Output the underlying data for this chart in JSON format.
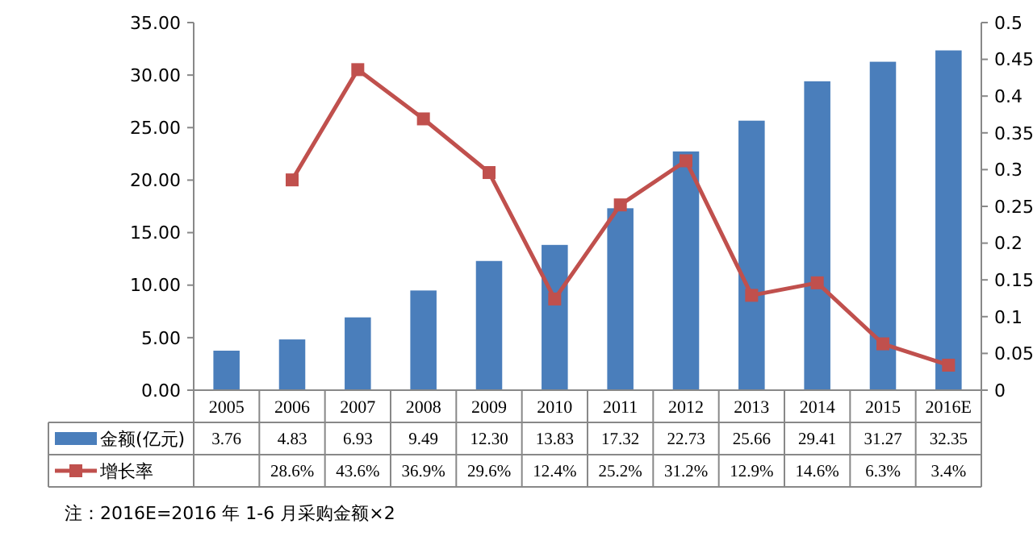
{
  "chart_data": {
    "type": "bar",
    "categories": [
      "2005",
      "2006",
      "2007",
      "2008",
      "2009",
      "2010",
      "2011",
      "2012",
      "2013",
      "2014",
      "2015",
      "2016E"
    ],
    "series": [
      {
        "name": "金额(亿元)",
        "color": "#4a7ebb",
        "values": [
          3.76,
          4.83,
          6.93,
          9.49,
          12.3,
          13.83,
          17.32,
          22.73,
          25.66,
          29.41,
          31.27,
          32.35
        ],
        "value_labels": [
          "3.76",
          "4.83",
          "6.93",
          "9.49",
          "12.30",
          "13.83",
          "17.32",
          "22.73",
          "25.66",
          "29.41",
          "31.27",
          "32.35"
        ]
      },
      {
        "name": "增长率",
        "type": "line",
        "axis": "y2",
        "color": "#c0504d",
        "marker": "square",
        "values": [
          null,
          0.286,
          0.436,
          0.369,
          0.296,
          0.124,
          0.252,
          0.312,
          0.129,
          0.146,
          0.063,
          0.034
        ],
        "value_labels": [
          null,
          "28.6%",
          "43.6%",
          "36.9%",
          "29.6%",
          "12.4%",
          "25.2%",
          "31.2%",
          "12.9%",
          "14.6%",
          "6.3%",
          "3.4%"
        ]
      }
    ],
    "ylim": [
      0,
      35
    ],
    "yticks": [
      {
        "value": 0,
        "label": "0.00"
      },
      {
        "value": 5,
        "label": "5.00"
      },
      {
        "value": 10,
        "label": "10.00"
      },
      {
        "value": 15,
        "label": "15.00"
      },
      {
        "value": 20,
        "label": "20.00"
      },
      {
        "value": 25,
        "label": "25.00"
      },
      {
        "value": 30,
        "label": "30.00"
      },
      {
        "value": 35,
        "label": "35.00"
      }
    ],
    "y2lim": [
      0,
      0.5
    ],
    "y2ticks": [
      0,
      0.05,
      0.1,
      0.15,
      0.2,
      0.25,
      0.3,
      0.35,
      0.4,
      0.45,
      0.5
    ],
    "legend": "bottom",
    "grid": false,
    "annotations": [
      "注：2016E=2016 年 1-6 月采购金额×2"
    ]
  }
}
